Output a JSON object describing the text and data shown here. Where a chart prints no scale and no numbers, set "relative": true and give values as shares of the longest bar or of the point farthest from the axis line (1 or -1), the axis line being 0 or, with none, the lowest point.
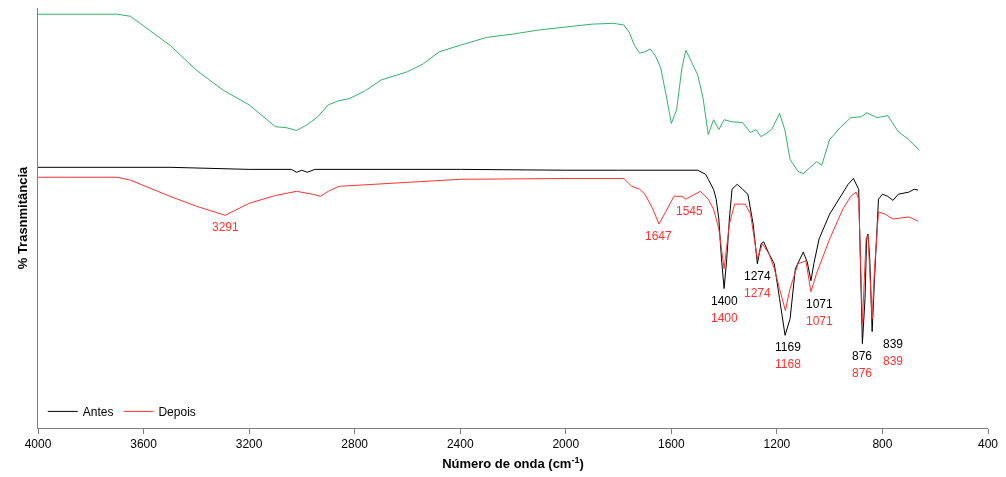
{
  "chart_data": {
    "type": "line",
    "relative": true,
    "xlabel": "Número de onda (cm$^{-1}$)",
    "ylabel": "% Trasnmitância",
    "xlim": [
      4000,
      400
    ],
    "xticks": [
      4000,
      3600,
      3200,
      2800,
      2400,
      2000,
      1600,
      1200,
      800,
      400
    ],
    "grid": false,
    "legend": "bottom left",
    "marker": "none",
    "line_style": "solid",
    "series": [
      {
        "name": "Antes",
        "color": "#000000",
        "x": [
          4000,
          3500,
          3200,
          3040,
          3020,
          3000,
          2980,
          2950,
          2400,
          2000,
          1800,
          1500,
          1470,
          1460,
          1440,
          1430,
          1420,
          1410,
          1400,
          1390,
          1380,
          1370,
          1350,
          1330,
          1310,
          1290,
          1274,
          1260,
          1250,
          1230,
          1210,
          1190,
          1169,
          1150,
          1130,
          1100,
          1085,
          1071,
          1060,
          1040,
          1000,
          960,
          930,
          910,
          890,
          876,
          866,
          860,
          855,
          848,
          839,
          830,
          815,
          800,
          780,
          760,
          740,
          700,
          680,
          665
        ],
        "values": [
          0.63,
          0.63,
          0.625,
          0.625,
          0.618,
          0.623,
          0.618,
          0.625,
          0.625,
          0.623,
          0.623,
          0.623,
          0.613,
          0.601,
          0.577,
          0.553,
          0.505,
          0.409,
          0.337,
          0.409,
          0.505,
          0.577,
          0.589,
          0.577,
          0.565,
          0.493,
          0.397,
          0.445,
          0.45,
          0.421,
          0.397,
          0.313,
          0.224,
          0.264,
          0.385,
          0.425,
          0.401,
          0.356,
          0.397,
          0.457,
          0.517,
          0.558,
          0.589,
          0.603,
          0.577,
          0.204,
          0.313,
          0.457,
          0.469,
          0.409,
          0.233,
          0.361,
          0.553,
          0.565,
          0.56,
          0.55,
          0.565,
          0.57,
          0.577,
          0.575
        ]
      },
      {
        "name": "Depois",
        "color": "#ff3333",
        "x": [
          4000,
          3700,
          3650,
          3500,
          3400,
          3291,
          3200,
          3100,
          3020,
          2960,
          2930,
          2900,
          2860,
          2400,
          2000,
          1780,
          1750,
          1720,
          1700,
          1670,
          1647,
          1620,
          1590,
          1560,
          1545,
          1520,
          1490,
          1460,
          1440,
          1420,
          1400,
          1380,
          1360,
          1320,
          1300,
          1274,
          1255,
          1230,
          1210,
          1190,
          1168,
          1150,
          1120,
          1090,
          1071,
          1050,
          1000,
          950,
          920,
          900,
          890,
          876,
          862,
          855,
          839,
          830,
          815,
          790,
          760,
          700,
          665
        ],
        "values": [
          0.606,
          0.606,
          0.599,
          0.56,
          0.536,
          0.514,
          0.543,
          0.562,
          0.572,
          0.565,
          0.56,
          0.572,
          0.584,
          0.601,
          0.603,
          0.603,
          0.584,
          0.577,
          0.565,
          0.529,
          0.493,
          0.524,
          0.56,
          0.56,
          0.553,
          0.562,
          0.572,
          0.553,
          0.529,
          0.481,
          0.385,
          0.493,
          0.541,
          0.541,
          0.517,
          0.409,
          0.445,
          0.421,
          0.385,
          0.337,
          0.284,
          0.337,
          0.397,
          0.404,
          0.329,
          0.373,
          0.457,
          0.529,
          0.56,
          0.57,
          0.553,
          0.252,
          0.457,
          0.466,
          0.264,
          0.385,
          0.522,
          0.517,
          0.505,
          0.51,
          0.5
        ]
      },
      {
        "color": "#33b36b",
        "x": [
          4000,
          3700,
          3650,
          3500,
          3400,
          3300,
          3200,
          3100,
          3060,
          3020,
          2980,
          2940,
          2900,
          2860,
          2820,
          2760,
          2700,
          2600,
          2540,
          2480,
          2400,
          2300,
          2200,
          2100,
          2000,
          1900,
          1820,
          1780,
          1760,
          1740,
          1720,
          1700,
          1680,
          1660,
          1640,
          1620,
          1600,
          1580,
          1560,
          1545,
          1520,
          1500,
          1480,
          1460,
          1440,
          1420,
          1400,
          1370,
          1330,
          1300,
          1280,
          1260,
          1220,
          1190,
          1170,
          1150,
          1120,
          1100,
          1070,
          1050,
          1030,
          1000,
          960,
          920,
          880,
          860,
          820,
          780,
          740,
          700,
          660
        ],
        "values": [
          1.0,
          1.0,
          0.995,
          0.925,
          0.865,
          0.817,
          0.781,
          0.728,
          0.726,
          0.719,
          0.733,
          0.752,
          0.781,
          0.791,
          0.796,
          0.815,
          0.841,
          0.861,
          0.88,
          0.909,
          0.925,
          0.944,
          0.952,
          0.962,
          0.969,
          0.976,
          0.978,
          0.974,
          0.957,
          0.925,
          0.906,
          0.909,
          0.916,
          0.899,
          0.87,
          0.805,
          0.736,
          0.769,
          0.87,
          0.913,
          0.88,
          0.853,
          0.798,
          0.709,
          0.745,
          0.721,
          0.745,
          0.74,
          0.738,
          0.714,
          0.721,
          0.704,
          0.721,
          0.76,
          0.721,
          0.649,
          0.62,
          0.615,
          0.632,
          0.644,
          0.635,
          0.697,
          0.726,
          0.75,
          0.752,
          0.762,
          0.75,
          0.755,
          0.716,
          0.697,
          0.671
        ]
      }
    ],
    "annotations": [
      {
        "text": "3291",
        "x": 3291,
        "y": 0.514
      },
      {
        "text": "1647",
        "x": 1647,
        "y": 0.493
      },
      {
        "text": "1545",
        "x": 1545,
        "y": 0.553
      },
      {
        "text": "1400",
        "x": 1400,
        "y": 0.337
      },
      "1400",
      {
        "text": "1274",
        "x": 1274,
        "y": 0.397
      },
      {
        "text": "1274",
        "x": 1274,
        "y": 0.409
      },
      {
        "text": "1169",
        "x": 1169,
        "y": 0.224
      },
      "1168",
      {
        "text": "1071",
        "x": 1071,
        "y": 0.356
      },
      {
        "text": "1071",
        "x": 1071,
        "y": 0.329
      },
      {
        "text": "876",
        "x": 876,
        "y": 0.204
      },
      "876",
      {
        "text": "839",
        "x": 839,
        "y": 0.233
      },
      "839"
    ]
  }
}
